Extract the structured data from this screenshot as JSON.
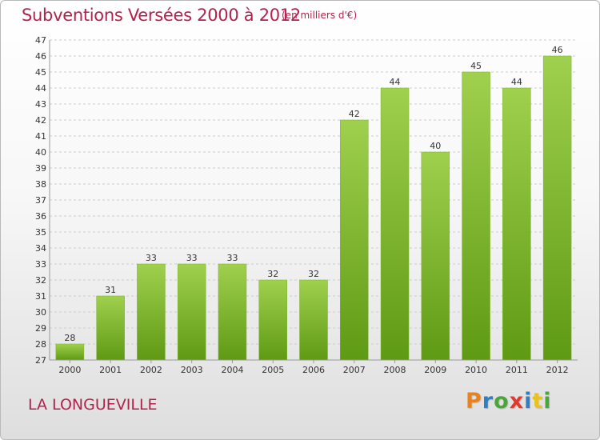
{
  "header": {
    "title": "Subventions Versées 2000 à 2012",
    "subtitle": "(en milliers d'€)"
  },
  "footer": {
    "place": "LA LONGUEVILLE",
    "logo": {
      "letters": [
        "P",
        "r",
        "o",
        "x",
        "i",
        "t",
        "i"
      ],
      "colors": [
        "#e8821e",
        "#2f7fc1",
        "#4aa53b",
        "#e03a2f",
        "#2f7fc1",
        "#e8c21e",
        "#4aa53b"
      ]
    }
  },
  "colors": {
    "bar_top": "#9fd04e",
    "bar_bottom": "#5f9a14",
    "grid": "#cccccc",
    "accent": "#b3214d"
  },
  "chart_data": {
    "type": "bar",
    "title": "Subventions Versées 2000 à 2012",
    "subtitle": "(en milliers d'€)",
    "xlabel": "",
    "ylabel": "",
    "categories": [
      "2000",
      "2001",
      "2002",
      "2003",
      "2004",
      "2005",
      "2006",
      "2007",
      "2008",
      "2009",
      "2010",
      "2011",
      "2012"
    ],
    "values": [
      28,
      31,
      33,
      33,
      33,
      32,
      32,
      42,
      44,
      40,
      45,
      44,
      46
    ],
    "ylim": [
      27,
      47
    ],
    "ytick_step": 1,
    "grid": true,
    "data_labels": true
  }
}
